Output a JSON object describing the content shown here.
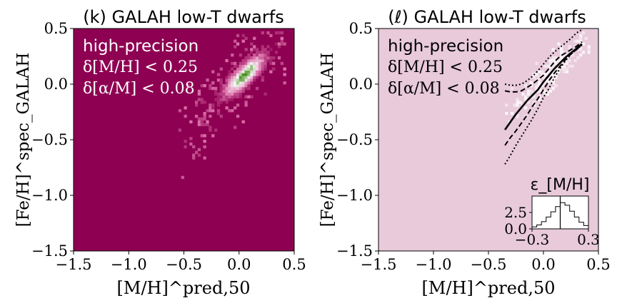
{
  "chart_data": [
    {
      "type": "heatmap",
      "title": "(k) GALAH low-T dwarfs",
      "xlabel": "[M/H]^pred,50",
      "ylabel": "[Fe/H]^spec_GALAH",
      "xlim": [
        -1.5,
        0.5
      ],
      "ylim": [
        -1.5,
        0.5
      ],
      "x_ticks": [
        "-1.5",
        "-1.0",
        "-0.5",
        "0.0",
        "0.5"
      ],
      "y_ticks": [
        "-1.5",
        "-1.0",
        "-0.5",
        "0.0",
        "0.5"
      ],
      "annotations": [
        "high-precision",
        "δ[M/H] < 0.25",
        "δ[α/M] < 0.08"
      ],
      "density": {
        "model": "2D histogram of stars, concentrated along the one-to-one line",
        "core_center": [
          0.05,
          0.08
        ],
        "relation_slope": 1.0,
        "core_value_scale": "low counts magenta -> white -> high counts green",
        "x_range_of_points": [
          -0.5,
          0.4
        ],
        "y_range_of_points": [
          -1.1,
          0.45
        ]
      },
      "colors": {
        "background": "#8e0152",
        "mid": "#f7f7f7",
        "high": "#4d9221"
      }
    },
    {
      "type": "line",
      "title": "(ℓ) GALAH low-T dwarfs",
      "xlabel": "[M/H]^pred,50",
      "ylabel": "[Fe/H]^spec_GALAH",
      "xlim": [
        -1.5,
        0.5
      ],
      "ylim": [
        -1.5,
        0.5
      ],
      "x_ticks": [
        "-1.5",
        "-1.0",
        "-0.5",
        "0.0",
        "0.5"
      ],
      "y_ticks": [
        "-1.5",
        "-1.0",
        "-0.5",
        "0.0",
        "0.5"
      ],
      "annotations": [
        "high-precision",
        "δ[M/H] < 0.25",
        "δ[α/M] < 0.08"
      ],
      "x": [
        -0.35,
        -0.3,
        -0.25,
        -0.2,
        -0.15,
        -0.1,
        -0.05,
        0.0,
        0.05,
        0.1,
        0.15,
        0.2,
        0.25,
        0.3,
        0.35
      ],
      "series": [
        {
          "style": "solid",
          "values": [
            -0.41,
            -0.34,
            -0.27,
            -0.21,
            -0.15,
            -0.1,
            -0.05,
            0.02,
            0.08,
            0.14,
            0.19,
            0.24,
            0.28,
            0.32,
            0.36
          ]
        },
        {
          "style": "dashed",
          "values": [
            -0.55,
            -0.48,
            -0.42,
            -0.35,
            -0.28,
            -0.2,
            -0.13,
            -0.05,
            0.03,
            0.1,
            0.16,
            0.22,
            0.27,
            0.31,
            0.35
          ]
        },
        {
          "style": "dashed",
          "values": [
            -0.06,
            -0.07,
            -0.07,
            -0.06,
            -0.03,
            0.0,
            0.04,
            0.08,
            0.14,
            0.2,
            0.25,
            0.28,
            0.31,
            0.34,
            0.38
          ]
        },
        {
          "style": "dotted",
          "values": [
            -0.72,
            -0.64,
            -0.55,
            -0.47,
            -0.39,
            -0.31,
            -0.22,
            -0.12,
            -0.04,
            0.06,
            0.14,
            0.21,
            0.27,
            0.31,
            0.35
          ]
        },
        {
          "style": "dotted",
          "values": [
            0.0,
            -0.01,
            -0.01,
            0.0,
            0.03,
            0.07,
            0.12,
            0.18,
            0.24,
            0.29,
            0.33,
            0.37,
            0.41,
            0.46,
            0.49
          ]
        }
      ],
      "colors": {
        "background": "#e8cadb",
        "lines": "#000000"
      },
      "inset": {
        "type": "histogram",
        "title": "ε_[M/H]",
        "xlim": [
          -0.3,
          0.3
        ],
        "ylim": [
          0,
          5
        ],
        "x_ticks": [
          "-0.3",
          "0.3"
        ],
        "y_ticks": [
          "0.0",
          "2.5"
        ],
        "bin_edges": [
          -0.3,
          -0.25,
          -0.2,
          -0.15,
          -0.1,
          -0.05,
          0.0,
          0.05,
          0.1,
          0.15,
          0.2,
          0.25,
          0.3
        ],
        "counts": [
          0.3,
          0.6,
          1.1,
          1.8,
          2.6,
          3.4,
          4.0,
          3.6,
          2.7,
          1.8,
          1.0,
          0.5
        ],
        "median_line_x": 0.0
      }
    }
  ]
}
